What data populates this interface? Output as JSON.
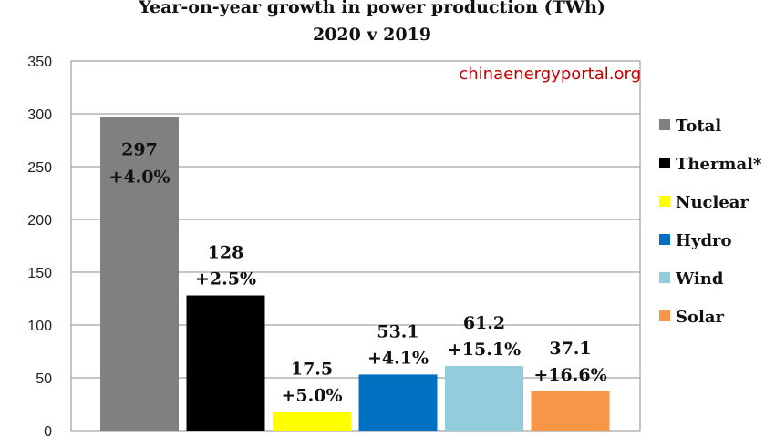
{
  "chart_data": {
    "type": "bar",
    "title": "Year-on-year growth in power production (TWh)",
    "subtitle": "2020 v 2019",
    "source": "chinaenergyportal.org",
    "ylim": [
      0,
      350
    ],
    "yticks": [
      "0",
      "50",
      "100",
      "150",
      "200",
      "250",
      "300",
      "350"
    ],
    "grid": true,
    "legend_position": "right",
    "categories": [
      "Total",
      "Thermal*",
      "Nuclear",
      "Hydro",
      "Wind",
      "Solar"
    ],
    "values": [
      297,
      128,
      17.5,
      53.1,
      61.2,
      37.1
    ],
    "value_labels": [
      "297",
      "128",
      "17.5",
      "53.1",
      "61.2",
      "37.1"
    ],
    "growth_labels": [
      "+4.0%",
      "+2.5%",
      "+5.0%",
      "+4.1%",
      "+15.1%",
      "+16.6%"
    ],
    "colors": [
      "#808080",
      "#000000",
      "#ffff00",
      "#0070c0",
      "#92cddc",
      "#f79646"
    ],
    "source_color": "#c00000"
  }
}
